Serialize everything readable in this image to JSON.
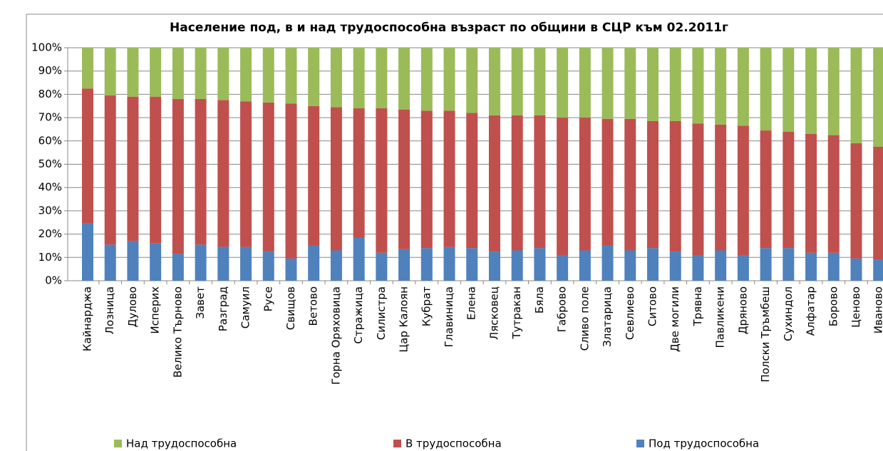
{
  "chart_data": {
    "type": "stacked_bar_100",
    "title": "Население под, в и над трудоспособна възраст по общини в СЦР към 02.2011г",
    "categories": [
      "Кайнарджа",
      "Лозница",
      "Дулово",
      "Исперих",
      "Велико Търново",
      "Завет",
      "Разград",
      "Самуил",
      "Русе",
      "Свищов",
      "Ветово",
      "Горна Оряховица",
      "Стражица",
      "Силистра",
      "Цар Калоян",
      "Кубрат",
      "Главиница",
      "Елена",
      "Лясковец",
      "Тутракан",
      "Бяла",
      "Габрово",
      "Сливо поле",
      "Златарица",
      "Севлиево",
      "Ситово",
      "Две могили",
      "Трявна",
      "Павликени",
      "Дряново",
      "Полски Тръмбеш",
      "Сухиндол",
      "Алфатар",
      "Борово",
      "Ценово",
      "Иваново"
    ],
    "series": [
      {
        "name": "Под трудоспособна",
        "color": "#4f81bd",
        "values": [
          24.5,
          15.5,
          17,
          16,
          11.5,
          15.5,
          14.5,
          14.5,
          12.5,
          9.5,
          15,
          13,
          18.5,
          12,
          13.5,
          14,
          14.5,
          14,
          12.5,
          13,
          14,
          11,
          13,
          15,
          13,
          14,
          12.5,
          11,
          13,
          11,
          14,
          14,
          12,
          12,
          9.5,
          9
        ]
      },
      {
        "name": "В трудоспособна",
        "color": "#c0504d",
        "values": [
          58,
          64,
          62,
          63,
          66.5,
          62.5,
          63,
          62.5,
          64,
          66.5,
          60,
          61.5,
          55.5,
          62,
          60,
          59,
          58.5,
          58,
          58.5,
          58,
          57,
          59,
          57,
          54.5,
          56.5,
          54.5,
          56,
          56.5,
          54,
          55.5,
          50.5,
          50,
          51,
          50.5,
          49.5,
          48.5
        ]
      },
      {
        "name": "Над трудоспособна",
        "color": "#9bbb59",
        "values": [
          17.5,
          20.5,
          21,
          21,
          22,
          22,
          22.5,
          23,
          23.5,
          24,
          25,
          25.5,
          26,
          26,
          26.5,
          27,
          27,
          28,
          29,
          29,
          29,
          30,
          30,
          30.5,
          30.5,
          31.5,
          31.5,
          32.5,
          33,
          33.5,
          35.5,
          36,
          37,
          37.5,
          41,
          42.5
        ]
      }
    ],
    "ylim": [
      0,
      100
    ],
    "yticks": [
      {
        "value": 0,
        "label": "0%"
      },
      {
        "value": 10,
        "label": "10%"
      },
      {
        "value": 20,
        "label": "20%"
      },
      {
        "value": 30,
        "label": "30%"
      },
      {
        "value": 40,
        "label": "40%"
      },
      {
        "value": 50,
        "label": "50%"
      },
      {
        "value": 60,
        "label": "60%"
      },
      {
        "value": 70,
        "label": "70%"
      },
      {
        "value": 80,
        "label": "80%"
      },
      {
        "value": 90,
        "label": "90%"
      },
      {
        "value": 100,
        "label": "100%"
      }
    ],
    "grid": true,
    "legend": "bottom"
  }
}
